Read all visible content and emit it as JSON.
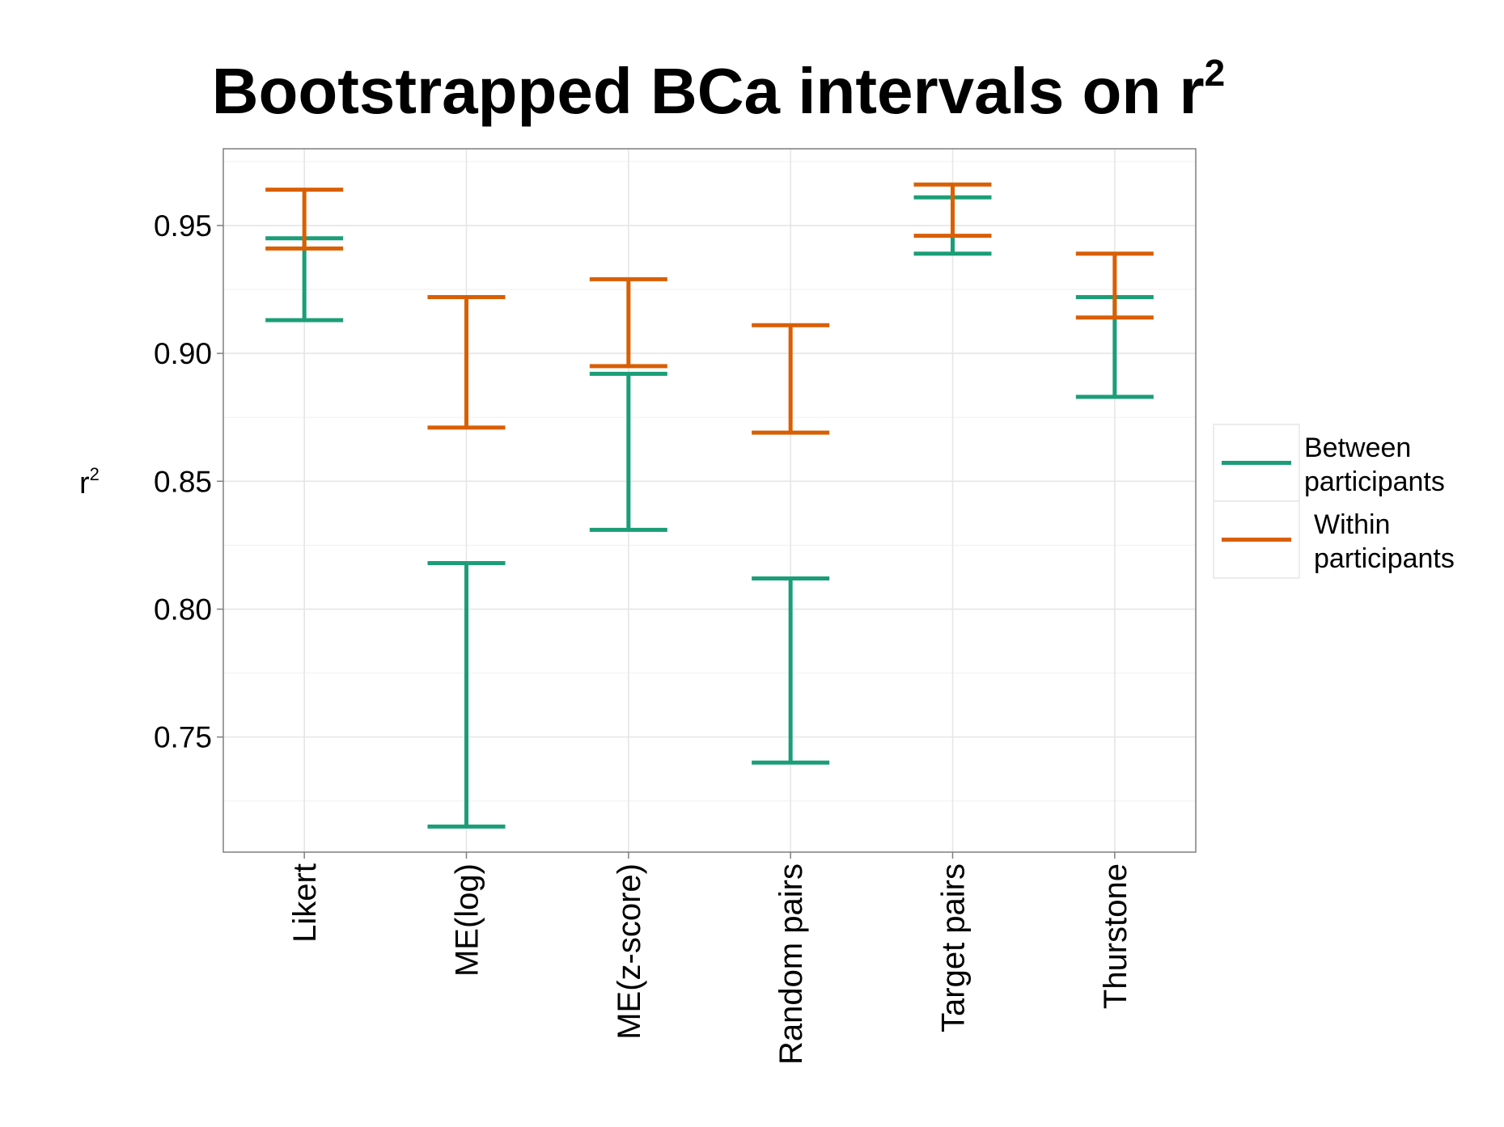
{
  "chart_data": {
    "type": "errorbar",
    "title": {
      "text": "Bootstrapped BCa intervals on r",
      "superscript": "2"
    },
    "ylabel": {
      "text": "r",
      "superscript": "2"
    },
    "xlabel": "",
    "ylim": [
      0.705,
      0.98
    ],
    "yticks": [
      0.75,
      0.8,
      0.85,
      0.9,
      0.95
    ],
    "ytick_labels": [
      "0.75",
      "0.80",
      "0.85",
      "0.90",
      "0.95"
    ],
    "grid": true,
    "legend_position": "right",
    "categories": [
      "Likert",
      "ME(log)",
      "ME(z-score)",
      "Random pairs",
      "Target pairs",
      "Thurstone"
    ],
    "series": [
      {
        "name_lines": [
          "Between",
          "participants"
        ],
        "color": "#1b9e77",
        "intervals": [
          {
            "low": 0.913,
            "high": 0.945
          },
          {
            "low": 0.715,
            "high": 0.818
          },
          {
            "low": 0.831,
            "high": 0.892
          },
          {
            "low": 0.74,
            "high": 0.812
          },
          {
            "low": 0.939,
            "high": 0.961
          },
          {
            "low": 0.883,
            "high": 0.922
          }
        ]
      },
      {
        "name_lines": [
          "Within",
          "participants"
        ],
        "color": "#d95f02",
        "intervals": [
          {
            "low": 0.941,
            "high": 0.964
          },
          {
            "low": 0.871,
            "high": 0.922
          },
          {
            "low": 0.895,
            "high": 0.929
          },
          {
            "low": 0.869,
            "high": 0.911
          },
          {
            "low": 0.946,
            "high": 0.966
          },
          {
            "low": 0.914,
            "high": 0.939
          }
        ]
      }
    ]
  }
}
